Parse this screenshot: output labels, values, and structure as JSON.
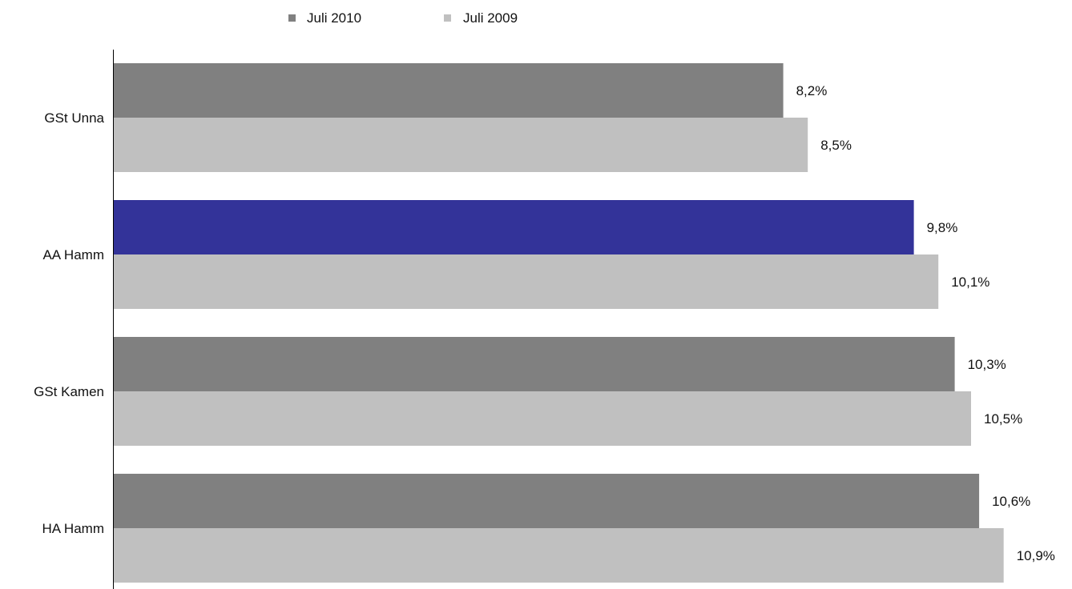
{
  "chart_data": {
    "type": "bar",
    "orientation": "horizontal",
    "categories": [
      "GSt Unna",
      "AA Hamm",
      "GSt Kamen",
      "HA Hamm"
    ],
    "series": [
      {
        "name": "Juli 2010",
        "values": [
          8.2,
          9.8,
          10.3,
          10.6
        ],
        "labels": [
          "8,2%",
          "9,8%",
          "10,3%",
          "10,6%"
        ],
        "color": "#808080"
      },
      {
        "name": "Juli 2009",
        "values": [
          8.5,
          10.1,
          10.5,
          10.9
        ],
        "labels": [
          "8,5%",
          "10,1%",
          "10,5%",
          "10,9%"
        ],
        "color": "#c0c0c0"
      }
    ],
    "highlight": {
      "category": "AA Hamm",
      "series": "Juli 2010",
      "color": "#333399"
    },
    "xlim": [
      0,
      11.4
    ],
    "grid": false,
    "legend_position": "top",
    "title": "",
    "xlabel": "",
    "ylabel": ""
  }
}
